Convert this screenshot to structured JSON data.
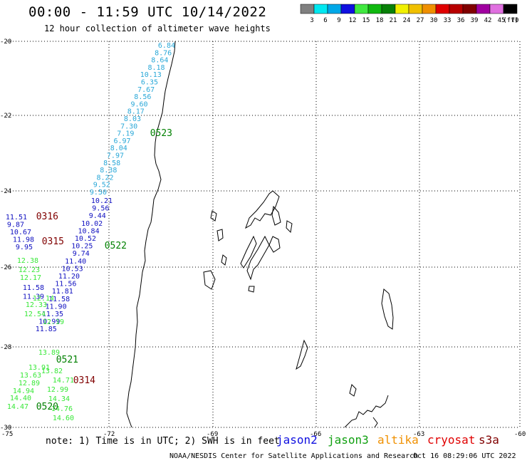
{
  "header": {
    "title": "00:00 - 11:59 UTC 10/14/2022",
    "subtitle": "12 hour collection of altimeter wave heights"
  },
  "legend": {
    "unit": "(ft)",
    "bins": [
      {
        "label": "3",
        "color": "#808080"
      },
      {
        "label": "6",
        "color": "#00e8f0"
      },
      {
        "label": "9",
        "color": "#00a8e8"
      },
      {
        "label": "12",
        "color": "#1010e0"
      },
      {
        "label": "15",
        "color": "#40e840"
      },
      {
        "label": "18",
        "color": "#10b810"
      },
      {
        "label": "21",
        "color": "#088008"
      },
      {
        "label": "24",
        "color": "#f0f000"
      },
      {
        "label": "27",
        "color": "#f0c000"
      },
      {
        "label": "30",
        "color": "#f09000"
      },
      {
        "label": "33",
        "color": "#e00000"
      },
      {
        "label": "36",
        "color": "#b80000"
      },
      {
        "label": "39",
        "color": "#800000"
      },
      {
        "label": "42",
        "color": "#a000a0"
      },
      {
        "label": "45",
        "color": "#e070e0"
      },
      {
        "label": "70",
        "color": "#000000"
      }
    ]
  },
  "axes": {
    "y_labels": [
      "-20",
      "-22",
      "-24",
      "-26",
      "-28",
      "-30"
    ],
    "x_labels": [
      "-75",
      "-72",
      "-69",
      "-66",
      "-63",
      "-60"
    ]
  },
  "colors": {
    "cyan": "#2aa8d8",
    "blue": "#1010c0",
    "green": "#38e838",
    "darkgreen": "#008000",
    "darkred": "#800000"
  },
  "tracks": {
    "cyan_values": [
      "6.84",
      "8.76",
      "8.64",
      "8.18",
      "10.13",
      "6.35",
      "7.67",
      "8.56",
      "9.60",
      "8.17",
      "8.03",
      "7.30",
      "7.19",
      "6.97",
      "8.04",
      "7.97",
      "8.58",
      "8.38",
      "8.22",
      "9.52",
      "9.50"
    ],
    "blue_values": [
      "10.21",
      "9.56",
      "9.44",
      "10.02",
      "10.84",
      "10.52",
      "10.25",
      "9.74",
      "11.40",
      "10.53",
      "11.20",
      "11.56",
      "11.81",
      "11.58",
      "11.90",
      "11.35",
      "10.99",
      "11.85"
    ],
    "left_blue_values": [
      "11.51",
      "9.87",
      "10.67",
      "11.98",
      "9.95"
    ],
    "left_blue_lower": [
      "11.58",
      "11.39"
    ],
    "green_values": [
      "12.38",
      "12.23",
      "12.17",
      "12.14",
      "12.33",
      "12.19",
      "12.54",
      "13.89",
      "13.82",
      "13.91",
      "13.63",
      "14.71",
      "12.99",
      "12.89",
      "14.34",
      "14.94",
      "14.40",
      "14.76",
      "14.47",
      "14.60"
    ],
    "time_labels": [
      {
        "text": "0523",
        "color": "darkgreen"
      },
      {
        "text": "0316",
        "color": "darkred"
      },
      {
        "text": "0315",
        "color": "darkred"
      },
      {
        "text": "0522",
        "color": "darkgreen"
      },
      {
        "text": "0521",
        "color": "darkgreen"
      },
      {
        "text": "0314",
        "color": "darkred"
      },
      {
        "text": "0520",
        "color": "darkgreen"
      }
    ]
  },
  "footer": {
    "note": "note: 1) Time is in UTC; 2) SWH is in feet",
    "satellites": [
      {
        "name": "jason2",
        "color": "#1010e0"
      },
      {
        "name": "jason3",
        "color": "#10a010"
      },
      {
        "name": "altika",
        "color": "#f09000"
      },
      {
        "name": "cryosat",
        "color": "#e00000"
      },
      {
        "name": "s3a",
        "color": "#800000"
      }
    ],
    "credit": "NOAA/NESDIS Center for Satellite Applications and Research",
    "timestamp": "Oct 16 08:29:06 UTC 2022"
  }
}
